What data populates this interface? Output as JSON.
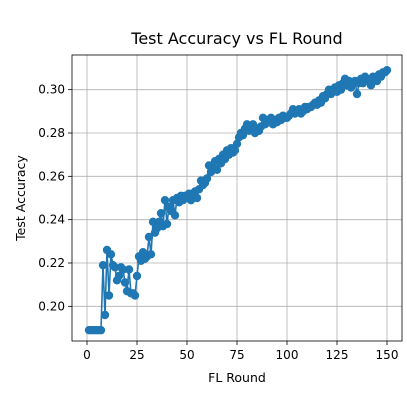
{
  "chart_data": {
    "type": "line",
    "title": "Test Accuracy vs FL Round",
    "xlabel": "FL Round",
    "ylabel": "Test Accuracy",
    "xlim": [
      -7.5,
      157.5
    ],
    "ylim": [
      0.184,
      0.316
    ],
    "xticks": [
      0,
      25,
      50,
      75,
      100,
      125,
      150
    ],
    "yticks": [
      0.2,
      0.22,
      0.24,
      0.26,
      0.28,
      0.3
    ],
    "ytick_labels": [
      "0.20",
      "0.22",
      "0.24",
      "0.26",
      "0.28",
      "0.30"
    ],
    "grid": true,
    "color": "#1f77b4",
    "marker": "circle",
    "series": [
      {
        "x": [
          1,
          2,
          3,
          4,
          5,
          6,
          7,
          8,
          9,
          10,
          11,
          12,
          13,
          14,
          15,
          16,
          17,
          18,
          19,
          20,
          21,
          22,
          23,
          24,
          25,
          26,
          27,
          28,
          29,
          30,
          31,
          32,
          33,
          34,
          35,
          36,
          37,
          38,
          39,
          40,
          41,
          42,
          43,
          44,
          45,
          46,
          47,
          48,
          49,
          50,
          51,
          52,
          53,
          54,
          55,
          56,
          57,
          58,
          59,
          60,
          61,
          62,
          63,
          64,
          65,
          66,
          67,
          68,
          69,
          70,
          71,
          72,
          73,
          74,
          75,
          76,
          77,
          78,
          79,
          80,
          81,
          82,
          83,
          84,
          85,
          86,
          87,
          88,
          89,
          90,
          91,
          92,
          93,
          94,
          95,
          96,
          97,
          98,
          99,
          100,
          101,
          102,
          103,
          104,
          105,
          106,
          107,
          108,
          109,
          110,
          111,
          112,
          113,
          114,
          115,
          116,
          117,
          118,
          119,
          120,
          121,
          122,
          123,
          124,
          125,
          126,
          127,
          128,
          129,
          130,
          131,
          132,
          133,
          134,
          135,
          136,
          137,
          138,
          139,
          140,
          141,
          142,
          143,
          144,
          145,
          146,
          147,
          148,
          149,
          150
        ],
        "y": [
          0.189,
          0.189,
          0.189,
          0.189,
          0.189,
          0.189,
          0.189,
          0.219,
          0.196,
          0.226,
          0.205,
          0.224,
          0.219,
          0.218,
          0.212,
          0.214,
          0.218,
          0.217,
          0.211,
          0.207,
          0.217,
          0.206,
          0.206,
          0.205,
          0.214,
          0.223,
          0.221,
          0.225,
          0.222,
          0.223,
          0.232,
          0.224,
          0.239,
          0.234,
          0.236,
          0.239,
          0.243,
          0.237,
          0.249,
          0.238,
          0.246,
          0.244,
          0.249,
          0.242,
          0.25,
          0.248,
          0.251,
          0.249,
          0.251,
          0.25,
          0.252,
          0.249,
          0.251,
          0.253,
          0.25,
          0.254,
          0.258,
          0.256,
          0.257,
          0.259,
          0.265,
          0.262,
          0.264,
          0.267,
          0.263,
          0.268,
          0.266,
          0.27,
          0.268,
          0.272,
          0.27,
          0.273,
          0.271,
          0.272,
          0.275,
          0.278,
          0.28,
          0.279,
          0.282,
          0.284,
          0.281,
          0.283,
          0.284,
          0.28,
          0.282,
          0.281,
          0.283,
          0.287,
          0.284,
          0.286,
          0.285,
          0.287,
          0.284,
          0.286,
          0.285,
          0.287,
          0.286,
          0.288,
          0.287,
          0.287,
          0.288,
          0.289,
          0.291,
          0.289,
          0.29,
          0.291,
          0.289,
          0.29,
          0.292,
          0.291,
          0.292,
          0.292,
          0.293,
          0.294,
          0.293,
          0.295,
          0.294,
          0.297,
          0.296,
          0.298,
          0.3,
          0.298,
          0.299,
          0.301,
          0.299,
          0.302,
          0.3,
          0.303,
          0.305,
          0.302,
          0.304,
          0.301,
          0.303,
          0.304,
          0.298,
          0.303,
          0.305,
          0.303,
          0.306,
          0.305,
          0.304,
          0.302,
          0.306,
          0.305,
          0.304,
          0.307,
          0.306,
          0.308,
          0.308,
          0.309
        ]
      }
    ]
  }
}
